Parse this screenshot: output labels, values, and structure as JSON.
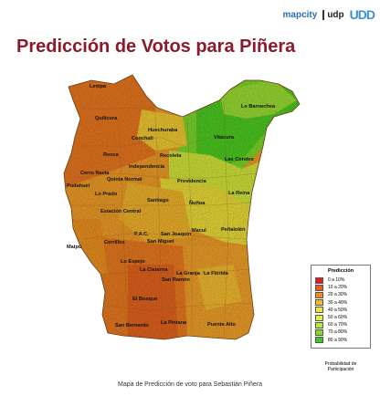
{
  "header": {
    "title": "Predicción de Votos para Piñera",
    "logos": [
      "mapcity",
      "udp",
      "UDD"
    ]
  },
  "map": {
    "communes": [
      {
        "name": "Lempa"
      },
      {
        "name": "Quilicura"
      },
      {
        "name": "Huechuraba"
      },
      {
        "name": "Conchali"
      },
      {
        "name": "Lo Barnechea"
      },
      {
        "name": "Vitacura"
      },
      {
        "name": "Renca"
      },
      {
        "name": "Recoleta"
      },
      {
        "name": "Independencia"
      },
      {
        "name": "Cerro Navia"
      },
      {
        "name": "Quinta Normal"
      },
      {
        "name": "Las Condes"
      },
      {
        "name": "Pudahuel"
      },
      {
        "name": "Providencia"
      },
      {
        "name": "Lo Prado"
      },
      {
        "name": "Santiago"
      },
      {
        "name": "La Reina"
      },
      {
        "name": "Ñuñoa"
      },
      {
        "name": "Estación Central"
      },
      {
        "name": "Peñalolén"
      },
      {
        "name": "P.A.C."
      },
      {
        "name": "San Joaquín"
      },
      {
        "name": "Macul"
      },
      {
        "name": "Maipú"
      },
      {
        "name": "Cerrillos"
      },
      {
        "name": "San Miguel"
      },
      {
        "name": "Lo Espejo"
      },
      {
        "name": "La Cisterna"
      },
      {
        "name": "La Granja"
      },
      {
        "name": "La Florida"
      },
      {
        "name": "San Ramón"
      },
      {
        "name": "El Bosque"
      },
      {
        "name": "San Bernardo"
      },
      {
        "name": "La Pintana"
      },
      {
        "name": "Puente Alto"
      }
    ]
  },
  "legend": {
    "title": "Predicción",
    "items": [
      {
        "label": "0 a 10%",
        "color": "#e41a1c"
      },
      {
        "label": "10 a 20%",
        "color": "#f05a1e"
      },
      {
        "label": "20 a 30%",
        "color": "#f58a1f"
      },
      {
        "label": "30 a 40%",
        "color": "#f8b42a"
      },
      {
        "label": "40 a 50%",
        "color": "#f9e23a"
      },
      {
        "label": "50 a 60%",
        "color": "#e1f03a"
      },
      {
        "label": "60 a 70%",
        "color": "#b6ea3a"
      },
      {
        "label": "70 a 80%",
        "color": "#7fdc2c"
      },
      {
        "label": "80 a 90%",
        "color": "#3ec81e"
      }
    ],
    "note_line1": "Probabilidad de",
    "note_line2": "Participación"
  },
  "caption": "Mapa de Predicción de voto para Sebastián Piñera"
}
